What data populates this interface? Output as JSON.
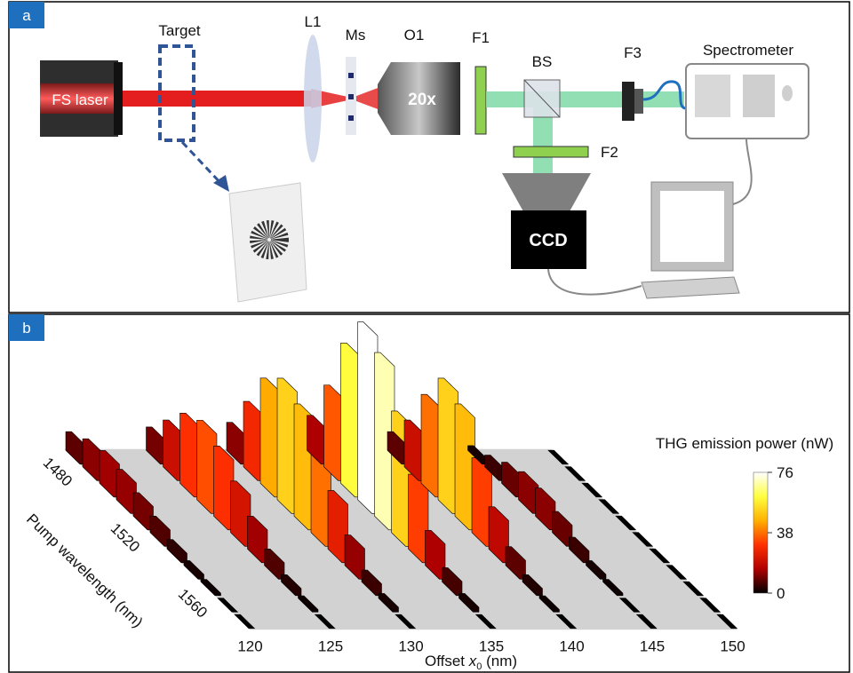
{
  "panel_a": {
    "label": "a",
    "laser": "FS laser",
    "target": "Target",
    "lens": "L1",
    "sample": "Ms",
    "objective": "O1",
    "magnification": "20x",
    "filter1": "F1",
    "splitter": "BS",
    "filter2": "F2",
    "camera": "CCD",
    "filter3": "F3",
    "spectrometer": "Spectrometer"
  },
  "chart_data": {
    "type": "bar3d",
    "panel_label": "b",
    "x_label": [
      "Offset ",
      "x",
      "0",
      " (nm)"
    ],
    "y_label": "Pump wavelength (nm)",
    "xlim": [
      120,
      150
    ],
    "xticks": [
      120,
      125,
      130,
      135,
      140,
      145,
      150
    ],
    "ylim": [
      1470,
      1570
    ],
    "yticks": [
      1480,
      1520,
      1560
    ],
    "wavelengths": [
      1470,
      1480,
      1490,
      1500,
      1510,
      1520,
      1530,
      1540,
      1550,
      1560,
      1570
    ],
    "series": [
      {
        "offset": 120,
        "values": [
          8,
          12,
          14,
          13,
          10,
          7,
          4,
          2,
          1,
          0,
          0
        ]
      },
      {
        "offset": 125,
        "values": [
          10,
          20,
          30,
          34,
          30,
          22,
          14,
          7,
          3,
          1,
          0
        ]
      },
      {
        "offset": 130,
        "values": [
          12,
          28,
          45,
          52,
          48,
          38,
          25,
          13,
          5,
          2,
          0
        ]
      },
      {
        "offset": 135,
        "values": [
          15,
          35,
          60,
          76,
          70,
          52,
          32,
          15,
          6,
          2,
          0
        ]
      },
      {
        "offset": 140,
        "values": [
          8,
          20,
          38,
          52,
          48,
          32,
          18,
          8,
          3,
          1,
          0
        ]
      },
      {
        "offset": 145,
        "values": [
          2,
          5,
          9,
          12,
          12,
          9,
          5,
          2,
          1,
          0,
          0
        ]
      },
      {
        "offset": 150,
        "values": [
          0,
          0,
          0,
          0,
          0,
          0,
          0,
          0,
          0,
          0,
          0
        ]
      }
    ],
    "colorbar": {
      "title": "THG emission power (nW)",
      "zlim": [
        0,
        76
      ],
      "zticks": [
        0,
        38,
        76
      ],
      "colormap": [
        "#000000",
        "#b00000",
        "#ff3000",
        "#ffb000",
        "#ffff40",
        "#ffffff"
      ]
    }
  }
}
